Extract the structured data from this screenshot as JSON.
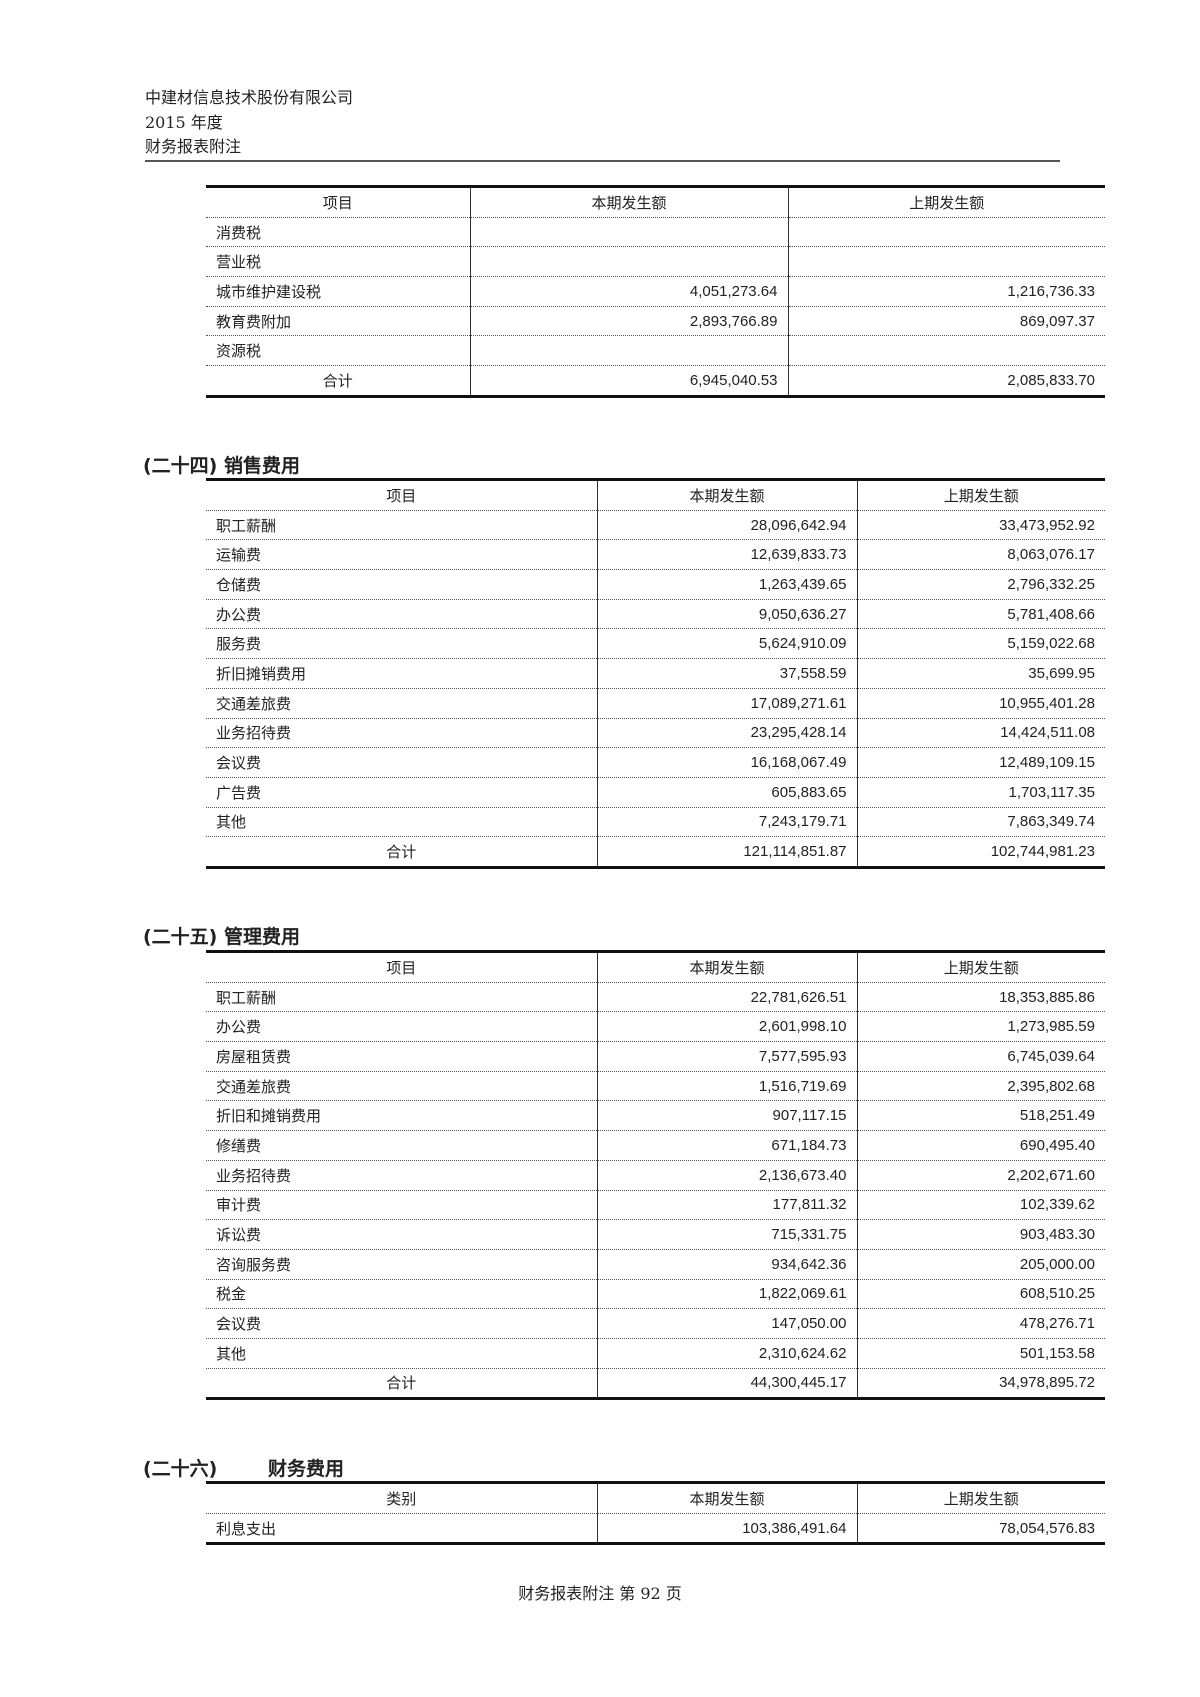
{
  "header": {
    "company": "中建材信息技术股份有限公司",
    "year": "2015 年度",
    "doc": "财务报表附注"
  },
  "tables": [
    {
      "section_no": "",
      "section_title": "",
      "columns": [
        "项目",
        "本期发生额",
        "上期发生额"
      ],
      "rows": [
        [
          "消费税",
          "",
          ""
        ],
        [
          "营业税",
          "",
          ""
        ],
        [
          "城市维护建设税",
          "4,051,273.64",
          "1,216,736.33"
        ],
        [
          "教育费附加",
          "2,893,766.89",
          "869,097.37"
        ],
        [
          "资源税",
          "",
          ""
        ]
      ],
      "total": [
        "合计",
        "6,945,040.53",
        "2,085,833.70"
      ]
    },
    {
      "section_no": "(二十四)",
      "section_title": "销售费用",
      "columns": [
        "项目",
        "本期发生额",
        "上期发生额"
      ],
      "rows": [
        [
          "职工薪酬",
          "28,096,642.94",
          "33,473,952.92"
        ],
        [
          "运输费",
          "12,639,833.73",
          "8,063,076.17"
        ],
        [
          "仓储费",
          "1,263,439.65",
          "2,796,332.25"
        ],
        [
          "办公费",
          "9,050,636.27",
          "5,781,408.66"
        ],
        [
          "服务费",
          "5,624,910.09",
          "5,159,022.68"
        ],
        [
          "折旧摊销费用",
          "37,558.59",
          "35,699.95"
        ],
        [
          "交通差旅费",
          "17,089,271.61",
          "10,955,401.28"
        ],
        [
          "业务招待费",
          "23,295,428.14",
          "14,424,511.08"
        ],
        [
          "会议费",
          "16,168,067.49",
          "12,489,109.15"
        ],
        [
          "广告费",
          "605,883.65",
          "1,703,117.35"
        ],
        [
          "其他",
          "7,243,179.71",
          "7,863,349.74"
        ]
      ],
      "total": [
        "合计",
        "121,114,851.87",
        "102,744,981.23"
      ]
    },
    {
      "section_no": "(二十五)",
      "section_title": "管理费用",
      "columns": [
        "项目",
        "本期发生额",
        "上期发生额"
      ],
      "rows": [
        [
          "职工薪酬",
          "22,781,626.51",
          "18,353,885.86"
        ],
        [
          "办公费",
          "2,601,998.10",
          "1,273,985.59"
        ],
        [
          "房屋租赁费",
          "7,577,595.93",
          "6,745,039.64"
        ],
        [
          "交通差旅费",
          "1,516,719.69",
          "2,395,802.68"
        ],
        [
          "折旧和摊销费用",
          "907,117.15",
          "518,251.49"
        ],
        [
          "修缮费",
          "671,184.73",
          "690,495.40"
        ],
        [
          "业务招待费",
          "2,136,673.40",
          "2,202,671.60"
        ],
        [
          "审计费",
          "177,811.32",
          "102,339.62"
        ],
        [
          "诉讼费",
          "715,331.75",
          "903,483.30"
        ],
        [
          "咨询服务费",
          "934,642.36",
          "205,000.00"
        ],
        [
          "税金",
          "1,822,069.61",
          "608,510.25"
        ],
        [
          "会议费",
          "147,050.00",
          "478,276.71"
        ],
        [
          "其他",
          "2,310,624.62",
          "501,153.58"
        ]
      ],
      "total": [
        "合计",
        "44,300,445.17",
        "34,978,895.72"
      ]
    },
    {
      "section_no": "(二十六)",
      "section_title": "财务费用",
      "columns": [
        "类别",
        "本期发生额",
        "上期发生额"
      ],
      "rows": [
        [
          "利息支出",
          "103,386,491.64",
          "78,054,576.83"
        ]
      ],
      "total": null
    }
  ],
  "footer": {
    "text": "财务报表附注 第 92 页"
  }
}
